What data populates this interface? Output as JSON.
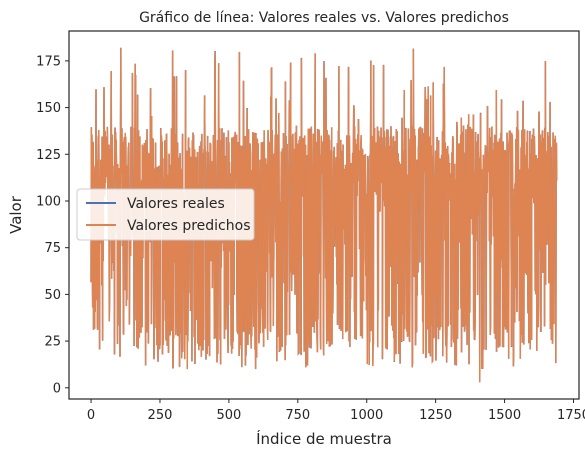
{
  "chart_data": {
    "type": "line",
    "title": "Gráfico de línea: Valores reales vs. Valores predichos",
    "xlabel": "Índice de muestra",
    "ylabel": "Valor",
    "xlim": [
      -80,
      1770
    ],
    "ylim": [
      -6,
      191
    ],
    "x_ticks": [
      0,
      250,
      500,
      750,
      1000,
      1250,
      1500,
      1750
    ],
    "y_ticks": [
      0,
      25,
      50,
      75,
      100,
      125,
      150,
      175
    ],
    "grid": false,
    "legend_position": "center-left",
    "n_points": 1690,
    "series": [
      {
        "name": "Valores reales",
        "color": "#4c72b0"
      },
      {
        "name": "Valores predichos",
        "color": "#dd8452"
      }
    ],
    "value_profile": {
      "min": 3,
      "max": 182,
      "dense_low": 20,
      "dense_high": 140,
      "typical": 120
    }
  }
}
